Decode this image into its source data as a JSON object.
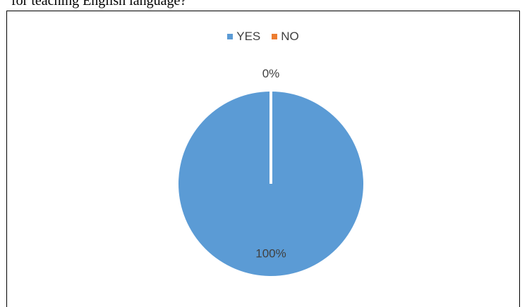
{
  "heading_fragment": "for teaching English language?",
  "chart_data": {
    "type": "pie",
    "title": "",
    "categories": [
      "YES",
      "NO"
    ],
    "values": [
      100,
      0
    ],
    "data_labels": [
      "100%",
      "0%"
    ],
    "colors": [
      "#5b9bd5",
      "#ed7d31"
    ],
    "legend_position": "top"
  }
}
